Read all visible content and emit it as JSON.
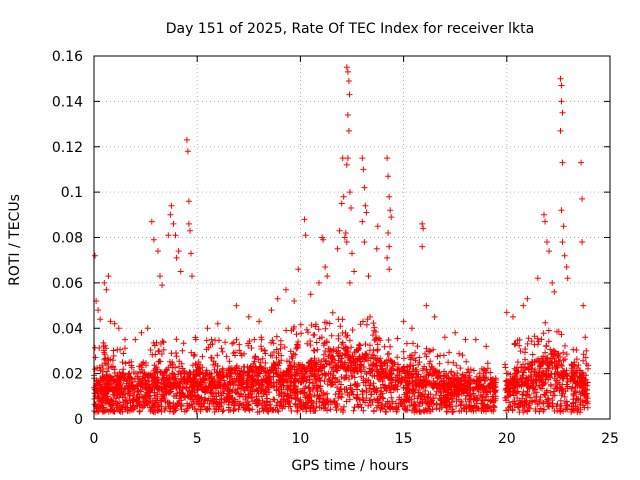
{
  "chart_data": {
    "type": "scatter",
    "title": "Day 151 of 2025, Rate Of TEC Index for receiver lkta",
    "xlabel": "GPS time / hours",
    "ylabel": "ROTI / TECUs",
    "xlim": [
      0,
      25
    ],
    "ylim": [
      0,
      0.16
    ],
    "x_ticks": [
      0,
      5,
      10,
      15,
      20,
      25
    ],
    "x_tick_labels": [
      "0",
      "5",
      "10",
      "15",
      "20",
      "25"
    ],
    "y_ticks": [
      0,
      0.02,
      0.04,
      0.06,
      0.08,
      0.1,
      0.12,
      0.14,
      0.16
    ],
    "y_tick_labels": [
      "0",
      "0.02",
      "0.04",
      "0.06",
      "0.08",
      "0.1",
      "0.12",
      "0.14",
      "0.16"
    ],
    "grid": true,
    "marker": "+",
    "color": "#ff0000",
    "series": [
      {
        "name": "ROTI",
        "points": [
          [
            0.05,
            0.072
          ],
          [
            0.1,
            0.052
          ],
          [
            0.2,
            0.048
          ],
          [
            0.3,
            0.044
          ],
          [
            0.5,
            0.06
          ],
          [
            0.6,
            0.057
          ],
          [
            0.7,
            0.063
          ],
          [
            0.8,
            0.043
          ],
          [
            1.0,
            0.042
          ],
          [
            1.2,
            0.04
          ],
          [
            1.5,
            0.035
          ],
          [
            2.0,
            0.035
          ],
          [
            2.3,
            0.038
          ],
          [
            2.6,
            0.04
          ],
          [
            2.8,
            0.087
          ],
          [
            2.9,
            0.079
          ],
          [
            3.1,
            0.074
          ],
          [
            3.2,
            0.063
          ],
          [
            3.3,
            0.059
          ],
          [
            3.6,
            0.081
          ],
          [
            3.7,
            0.09
          ],
          [
            3.75,
            0.094
          ],
          [
            3.85,
            0.086
          ],
          [
            3.95,
            0.081
          ],
          [
            4.0,
            0.071
          ],
          [
            4.1,
            0.074
          ],
          [
            4.2,
            0.065
          ],
          [
            4.5,
            0.123
          ],
          [
            4.55,
            0.118
          ],
          [
            4.6,
            0.096
          ],
          [
            4.6,
            0.086
          ],
          [
            4.65,
            0.083
          ],
          [
            4.7,
            0.073
          ],
          [
            4.75,
            0.063
          ],
          [
            5.5,
            0.04
          ],
          [
            6.0,
            0.042
          ],
          [
            6.5,
            0.04
          ],
          [
            6.9,
            0.05
          ],
          [
            7.5,
            0.045
          ],
          [
            8.0,
            0.043
          ],
          [
            8.6,
            0.048
          ],
          [
            8.9,
            0.053
          ],
          [
            9.3,
            0.057
          ],
          [
            9.7,
            0.052
          ],
          [
            9.9,
            0.066
          ],
          [
            10.2,
            0.088
          ],
          [
            10.25,
            0.081
          ],
          [
            10.5,
            0.055
          ],
          [
            10.9,
            0.06
          ],
          [
            11.05,
            0.08
          ],
          [
            11.1,
            0.079
          ],
          [
            11.2,
            0.067
          ],
          [
            11.3,
            0.063
          ],
          [
            11.8,
            0.075
          ],
          [
            11.9,
            0.083
          ],
          [
            12.0,
            0.095
          ],
          [
            12.05,
            0.115
          ],
          [
            12.1,
            0.098
          ],
          [
            12.15,
            0.08
          ],
          [
            12.25,
            0.155
          ],
          [
            12.3,
            0.153
          ],
          [
            12.35,
            0.149
          ],
          [
            12.38,
            0.143
          ],
          [
            12.3,
            0.134
          ],
          [
            12.35,
            0.127
          ],
          [
            12.3,
            0.115
          ],
          [
            12.25,
            0.112
          ],
          [
            12.4,
            0.1
          ],
          [
            12.45,
            0.093
          ],
          [
            12.2,
            0.082
          ],
          [
            12.25,
            0.078
          ],
          [
            12.5,
            0.073
          ],
          [
            12.6,
            0.065
          ],
          [
            12.4,
            0.06
          ],
          [
            13.0,
            0.115
          ],
          [
            13.05,
            0.11
          ],
          [
            13.1,
            0.102
          ],
          [
            13.15,
            0.094
          ],
          [
            13.2,
            0.091
          ],
          [
            13.0,
            0.087
          ],
          [
            13.1,
            0.078
          ],
          [
            13.3,
            0.063
          ],
          [
            13.7,
            0.075
          ],
          [
            13.75,
            0.085
          ],
          [
            14.2,
            0.115
          ],
          [
            14.25,
            0.107
          ],
          [
            14.3,
            0.098
          ],
          [
            14.35,
            0.092
          ],
          [
            14.4,
            0.089
          ],
          [
            14.25,
            0.082
          ],
          [
            14.3,
            0.076
          ],
          [
            14.2,
            0.071
          ],
          [
            14.3,
            0.066
          ],
          [
            15.0,
            0.043
          ],
          [
            15.4,
            0.04
          ],
          [
            15.9,
            0.086
          ],
          [
            15.95,
            0.084
          ],
          [
            15.9,
            0.076
          ],
          [
            16.1,
            0.05
          ],
          [
            16.5,
            0.045
          ],
          [
            17.0,
            0.036
          ],
          [
            17.5,
            0.038
          ],
          [
            18.0,
            0.035
          ],
          [
            18.5,
            0.035
          ],
          [
            19.0,
            0.032
          ],
          [
            20.0,
            0.047
          ],
          [
            20.3,
            0.045
          ],
          [
            20.8,
            0.05
          ],
          [
            21.0,
            0.053
          ],
          [
            21.5,
            0.062
          ],
          [
            21.8,
            0.09
          ],
          [
            21.85,
            0.087
          ],
          [
            21.95,
            0.078
          ],
          [
            22.05,
            0.074
          ],
          [
            22.2,
            0.06
          ],
          [
            22.3,
            0.056
          ],
          [
            22.6,
            0.15
          ],
          [
            22.65,
            0.147
          ],
          [
            22.65,
            0.14
          ],
          [
            22.7,
            0.135
          ],
          [
            22.6,
            0.127
          ],
          [
            22.7,
            0.113
          ],
          [
            22.65,
            0.092
          ],
          [
            22.75,
            0.085
          ],
          [
            22.7,
            0.078
          ],
          [
            22.8,
            0.072
          ],
          [
            22.9,
            0.067
          ],
          [
            22.95,
            0.062
          ],
          [
            23.6,
            0.113
          ],
          [
            23.65,
            0.097
          ],
          [
            23.65,
            0.078
          ],
          [
            23.7,
            0.05
          ],
          [
            23.8,
            0.036
          ],
          [
            23.85,
            0.03
          ]
        ],
        "dense_band": {
          "x_start": 0.0,
          "x_end": 23.95,
          "gaps": [
            [
              19.5,
              19.9
            ],
            [
              22.95,
              23.1
            ]
          ],
          "baseline": [
            [
              0,
              0.012
            ],
            [
              2,
              0.014
            ],
            [
              5,
              0.014
            ],
            [
              8,
              0.016
            ],
            [
              10,
              0.016
            ],
            [
              12,
              0.022
            ],
            [
              14,
              0.018
            ],
            [
              15,
              0.016
            ],
            [
              18,
              0.013
            ],
            [
              19.5,
              0.012
            ],
            [
              20,
              0.012
            ],
            [
              21.5,
              0.018
            ],
            [
              22.5,
              0.02
            ],
            [
              24,
              0.012
            ]
          ],
          "upper": [
            [
              0,
              0.035
            ],
            [
              2,
              0.03
            ],
            [
              4,
              0.038
            ],
            [
              6,
              0.035
            ],
            [
              8,
              0.036
            ],
            [
              9.5,
              0.04
            ],
            [
              11,
              0.045
            ],
            [
              12.5,
              0.05
            ],
            [
              13.5,
              0.045
            ],
            [
              14.5,
              0.038
            ],
            [
              15,
              0.035
            ],
            [
              17,
              0.03
            ],
            [
              19,
              0.027
            ],
            [
              19.5,
              0.025
            ],
            [
              20,
              0.03
            ],
            [
              21,
              0.04
            ],
            [
              22,
              0.048
            ],
            [
              23,
              0.032
            ],
            [
              24,
              0.028
            ]
          ],
          "floor": 0.003,
          "points_per_hour": 460
        }
      }
    ]
  }
}
